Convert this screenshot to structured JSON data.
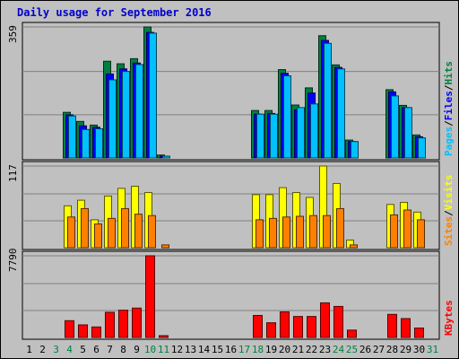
{
  "chart_data": {
    "type": "bar",
    "title": "Daily usage for September 2016",
    "x": [
      1,
      2,
      3,
      4,
      5,
      6,
      7,
      8,
      9,
      10,
      11,
      12,
      13,
      14,
      15,
      16,
      17,
      18,
      19,
      20,
      21,
      22,
      23,
      24,
      25,
      26,
      27,
      28,
      29,
      30,
      31
    ],
    "weekend_days": [
      3,
      4,
      10,
      11,
      17,
      18,
      24,
      25,
      31
    ],
    "panels": [
      {
        "id": "hits",
        "ymax_label": "359",
        "ylim": [
          0,
          359
        ],
        "legend": [
          {
            "text": "Hits",
            "color": "#008040"
          },
          {
            "text": "/",
            "color": "#000000"
          },
          {
            "text": "Files",
            "color": "#0000FF"
          },
          {
            "text": "/",
            "color": "#000000"
          },
          {
            "text": "Pages",
            "color": "#00C0FF"
          }
        ],
        "series": [
          {
            "name": "Hits",
            "color": "#008040",
            "values": [
              0,
              0,
              0,
              125,
              100,
              90,
              265,
              258,
              272,
              359,
              8,
              0,
              0,
              0,
              0,
              0,
              0,
              130,
              130,
              242,
              145,
              192,
              335,
              255,
              49,
              0,
              0,
              187,
              144,
              63,
              0
            ]
          },
          {
            "name": "Files",
            "color": "#0000FF",
            "values": [
              0,
              0,
              0,
              118,
              88,
              84,
              230,
              244,
              260,
              344,
              5,
              0,
              0,
              0,
              0,
              0,
              0,
              120,
              122,
              232,
              132,
              178,
              322,
              248,
              45,
              0,
              0,
              181,
              138,
              58,
              0
            ]
          },
          {
            "name": "Pages",
            "color": "#00C0FF",
            "values": [
              0,
              0,
              0,
              115,
              78,
              80,
              214,
              237,
              256,
              342,
              4,
              0,
              0,
              0,
              0,
              0,
              0,
              120,
              120,
              225,
              138,
              148,
              314,
              244,
              45,
              0,
              0,
              170,
              138,
              55,
              0
            ]
          }
        ]
      },
      {
        "id": "visits",
        "ymax_label": "117",
        "ylim": [
          0,
          117
        ],
        "legend": [
          {
            "text": "Visits",
            "color": "#FFFF00"
          },
          {
            "text": "/",
            "color": "#000000"
          },
          {
            "text": "Sites",
            "color": "#FF8000"
          }
        ],
        "series": [
          {
            "name": "Visits",
            "color": "#FFFF00",
            "values": [
              0,
              0,
              0,
              60,
              68,
              40,
              74,
              85,
              88,
              79,
              0,
              0,
              0,
              0,
              0,
              0,
              0,
              76,
              76,
              86,
              79,
              72,
              117,
              92,
              11,
              0,
              0,
              62,
              65,
              51,
              0
            ]
          },
          {
            "name": "Sites",
            "color": "#FF8000",
            "values": [
              0,
              0,
              0,
              44,
              56,
              34,
              42,
              56,
              48,
              46,
              4,
              0,
              0,
              0,
              0,
              0,
              0,
              40,
              42,
              44,
              45,
              46,
              46,
              56,
              4,
              0,
              0,
              47,
              54,
              40,
              0
            ]
          }
        ]
      },
      {
        "id": "kbytes",
        "ymax_label": "7790",
        "ylim": [
          0,
          7790
        ],
        "legend": [
          {
            "text": "KBytes",
            "color": "#FF0000"
          }
        ],
        "series": [
          {
            "name": "KBytes",
            "color": "#FF0000",
            "values": [
              0,
              0,
              0,
              1600,
              1200,
              1000,
              2400,
              2600,
              2800,
              7790,
              60,
              0,
              0,
              0,
              0,
              0,
              0,
              2100,
              1400,
              2440,
              2000,
              2000,
              3300,
              2960,
              700,
              0,
              0,
              2200,
              1800,
              900,
              0
            ]
          }
        ]
      }
    ]
  }
}
